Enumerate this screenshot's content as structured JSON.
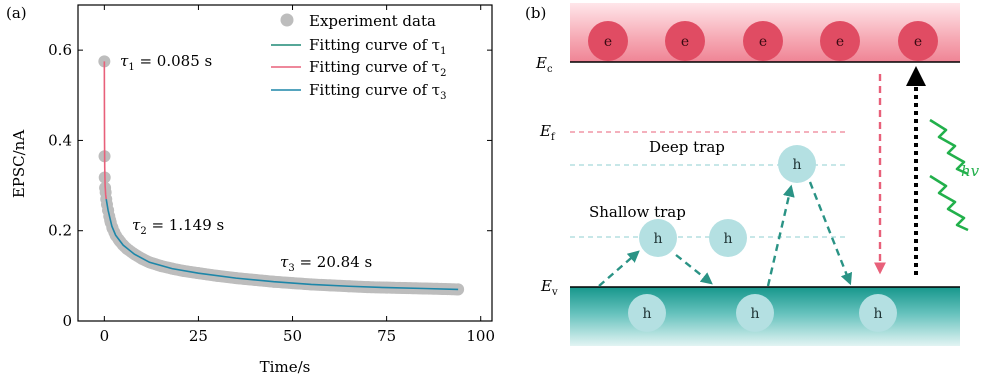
{
  "chart_data": [
    {
      "type": "scatter",
      "panel_label": "(a)",
      "xlabel": "Time/s",
      "ylabel": "EPSC/nA",
      "xlim": [
        -7,
        103
      ],
      "ylim": [
        0,
        0.7
      ],
      "xticks": [
        0,
        25,
        50,
        75,
        100
      ],
      "yticks": [
        0,
        0.2,
        0.4,
        0.6
      ],
      "xtick_labels": [
        "0",
        "25",
        "50",
        "75",
        "100"
      ],
      "ytick_labels": [
        "0",
        "0.2",
        "0.4",
        "0.6"
      ],
      "grid": false,
      "legend": "top-right",
      "series": [
        {
          "name": "Experiment data",
          "kind": "scatter",
          "color": "#bdbdbd",
          "x": [
            0,
            0.05,
            0.1,
            0.2,
            0.35,
            0.5,
            0.7,
            1,
            1.3,
            1.7,
            2.2,
            3,
            4,
            5,
            6,
            8,
            10,
            12,
            15,
            18,
            21,
            25,
            30,
            35,
            40,
            45,
            50,
            55,
            60,
            65,
            70,
            75,
            80,
            85,
            90,
            94
          ],
          "y": [
            0.575,
            0.365,
            0.318,
            0.295,
            0.285,
            0.27,
            0.258,
            0.245,
            0.232,
            0.218,
            0.205,
            0.19,
            0.178,
            0.168,
            0.16,
            0.148,
            0.138,
            0.13,
            0.122,
            0.116,
            0.111,
            0.106,
            0.1,
            0.095,
            0.091,
            0.087,
            0.084,
            0.081,
            0.079,
            0.077,
            0.075,
            0.074,
            0.073,
            0.072,
            0.071,
            0.07
          ]
        },
        {
          "name": "Fitting curve of τ1",
          "kind": "line",
          "color": "#1f8a76",
          "x": [
            0
          ],
          "y": [
            0.575
          ]
        },
        {
          "name": "Fitting curve of τ2",
          "kind": "line",
          "color": "#e8607a",
          "x": [
            0,
            0.02,
            0.05,
            0.1,
            0.2,
            0.35,
            0.5
          ],
          "y": [
            0.575,
            0.48,
            0.4,
            0.34,
            0.3,
            0.28,
            0.27
          ]
        },
        {
          "name": "Fitting curve of τ3",
          "kind": "line",
          "color": "#1d86a8",
          "x": [
            0.5,
            1,
            2,
            3,
            5,
            8,
            12,
            18,
            25,
            35,
            45,
            55,
            65,
            75,
            85,
            94
          ],
          "y": [
            0.27,
            0.245,
            0.21,
            0.19,
            0.168,
            0.148,
            0.13,
            0.116,
            0.106,
            0.095,
            0.087,
            0.081,
            0.077,
            0.074,
            0.072,
            0.07
          ]
        }
      ],
      "legend_entries": [
        {
          "label": "Experiment data",
          "sub": ""
        },
        {
          "label": "Fitting curve of τ",
          "sub": "1"
        },
        {
          "label": "Fitting curve of τ",
          "sub": "2"
        },
        {
          "label": "Fitting curve of τ",
          "sub": "3"
        }
      ],
      "annotations": [
        {
          "tau": "τ",
          "sub": "1",
          "text": " = 0.085 s",
          "x": 3,
          "y": 0.575
        },
        {
          "tau": "τ",
          "sub": "2",
          "text": " = 1.149 s",
          "x": 5.5,
          "y": 0.205
        },
        {
          "tau": "τ",
          "sub": "3",
          "text": " = 20.84 s",
          "x": 46,
          "y": 0.12
        }
      ]
    }
  ],
  "diagram": {
    "panel_label": "(b)",
    "ec_label": "E",
    "ec_sub": "c",
    "ef_label": "E",
    "ef_sub": "f",
    "ev_label": "E",
    "ev_sub": "v",
    "deep_trap": "Deep trap",
    "shallow_trap": "Shallow trap",
    "hv": "hv",
    "electron": "e",
    "hole": "h",
    "colors": {
      "conduction_band": "#f29aa6",
      "electron": "#e04c63",
      "valence_band": "#1d9e93",
      "hole": "#b4e0e2",
      "dashed_teal": "#2a9385",
      "fermi_line": "#e8607a",
      "trap_line": "#8fcfd0",
      "arrow_down": "#e8607a",
      "photon": "#22b04b"
    }
  }
}
